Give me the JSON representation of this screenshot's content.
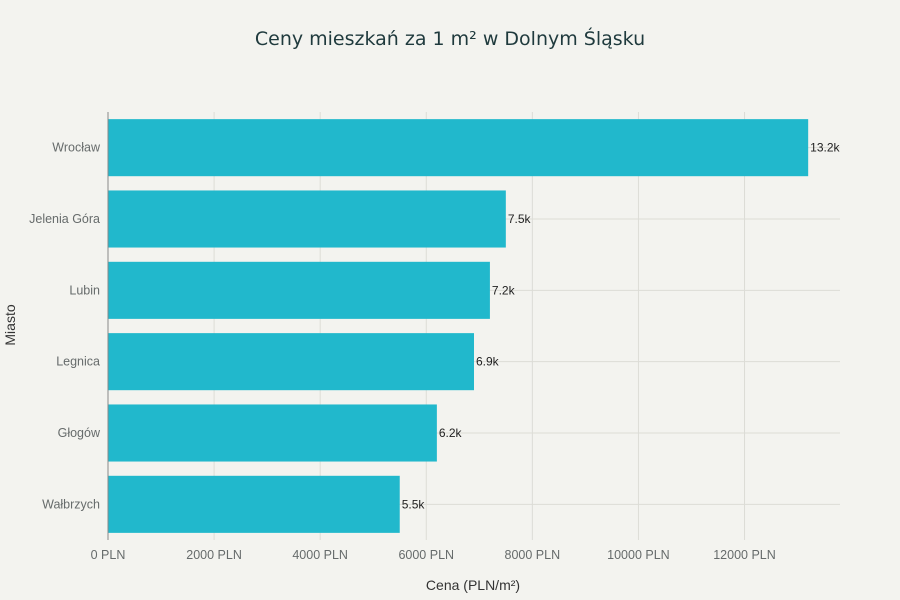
{
  "chart_data": {
    "type": "bar",
    "orientation": "horizontal",
    "title": "Ceny mieszkań za 1 m² w Dolnym Śląsku",
    "xlabel": "Cena (PLN/m²)",
    "ylabel": "Miasto",
    "categories": [
      "Wrocław",
      "Jelenia Góra",
      "Lubin",
      "Legnica",
      "Głogów",
      "Wałbrzych"
    ],
    "values": [
      13200,
      7500,
      7200,
      6900,
      6200,
      5500
    ],
    "data_labels": [
      "13.2k",
      "7.5k",
      "7.2k",
      "6.9k",
      "6.2k",
      "5.5k"
    ],
    "xlim": [
      0,
      13800
    ],
    "x_ticks": [
      0,
      2000,
      4000,
      6000,
      8000,
      10000,
      12000
    ],
    "x_tick_labels": [
      "0 PLN",
      "2000 PLN",
      "4000 PLN",
      "6000 PLN",
      "8000 PLN",
      "10000 PLN",
      "12000 PLN"
    ],
    "grid": true,
    "bar_color": "#21b8cc",
    "background_color": "#f3f3ef"
  }
}
